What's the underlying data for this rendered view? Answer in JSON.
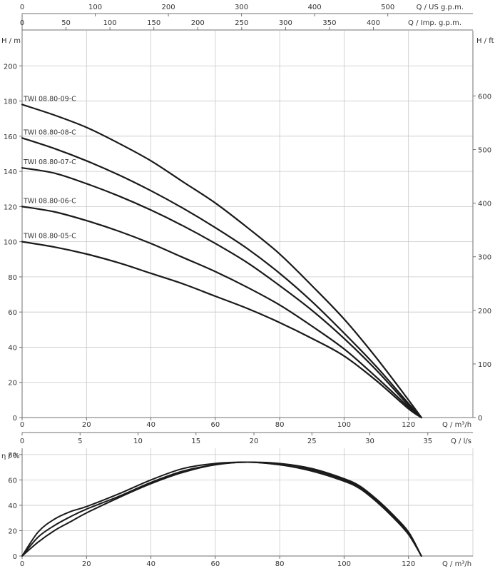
{
  "chart_data": [
    {
      "type": "line",
      "title": "",
      "xlabel": "Q / m³/h",
      "ylabel": "H / m",
      "xlim": [
        0,
        140
      ],
      "ylim": [
        0,
        220
      ],
      "x_ticks": [
        0,
        20,
        40,
        60,
        80,
        100,
        120
      ],
      "y_ticks": [
        0,
        20,
        40,
        60,
        80,
        100,
        120,
        140,
        160,
        180,
        200
      ],
      "grid": true,
      "secondary_axes": {
        "top_us": {
          "label": "Q / US g.p.m.",
          "max": 616.4,
          "ticks": [
            0,
            100,
            200,
            300,
            400,
            500
          ]
        },
        "top_imp": {
          "label": "Q / Imp. g.p.m.",
          "max": 513.3,
          "ticks": [
            0,
            50,
            100,
            150,
            200,
            250,
            300,
            350,
            400
          ]
        },
        "right_ft": {
          "label": "H / ft",
          "max": 721.8,
          "ticks": [
            0,
            100,
            200,
            300,
            400,
            500,
            600
          ]
        },
        "bottom_ls": {
          "label": "Q / l/s",
          "max": 38.89,
          "ticks": [
            0,
            5,
            10,
            15,
            20,
            25,
            30,
            35
          ]
        }
      },
      "series": [
        {
          "name": "TWI 08.80-09-C",
          "x": [
            0,
            10,
            20,
            30,
            40,
            50,
            60,
            70,
            80,
            90,
            100,
            110,
            120,
            124
          ],
          "y": [
            178,
            172,
            165,
            156,
            146,
            134,
            122,
            108,
            93,
            75,
            56,
            34,
            10,
            0
          ]
        },
        {
          "name": "TWI 08.80-08-C",
          "x": [
            0,
            10,
            20,
            30,
            40,
            50,
            60,
            70,
            80,
            90,
            100,
            110,
            120,
            124
          ],
          "y": [
            159,
            153,
            146,
            138,
            129,
            119,
            108,
            96,
            82,
            66,
            48,
            29,
            8,
            0
          ]
        },
        {
          "name": "TWI 08.80-07-C",
          "x": [
            0,
            10,
            20,
            30,
            40,
            50,
            60,
            70,
            80,
            90,
            100,
            110,
            120,
            124
          ],
          "y": [
            142,
            139,
            133,
            126,
            118,
            109,
            99,
            88,
            75,
            61,
            45,
            27,
            7,
            0
          ]
        },
        {
          "name": "TWI 08.80-06-C",
          "x": [
            0,
            10,
            20,
            30,
            40,
            50,
            60,
            70,
            80,
            90,
            100,
            110,
            120,
            124
          ],
          "y": [
            120,
            117,
            112,
            106,
            99,
            91,
            83,
            74,
            64,
            52,
            39,
            23,
            6,
            0
          ]
        },
        {
          "name": "TWI 08.80-05-C",
          "x": [
            0,
            10,
            20,
            30,
            40,
            50,
            60,
            70,
            80,
            90,
            100,
            110,
            120,
            124
          ],
          "y": [
            100,
            97,
            93,
            88,
            82,
            76,
            69,
            62,
            54,
            45,
            35,
            21,
            5,
            0
          ]
        }
      ]
    },
    {
      "type": "line",
      "title": "",
      "xlabel": "Q / m³/h",
      "ylabel": "η / %",
      "xlim": [
        0,
        140
      ],
      "ylim": [
        0,
        85
      ],
      "x_ticks": [
        0,
        20,
        40,
        60,
        80,
        100,
        120
      ],
      "y_ticks": [
        0,
        20,
        40,
        60,
        80
      ],
      "grid": true,
      "series": [
        {
          "x": [
            0,
            5,
            10,
            15,
            20,
            30,
            40,
            50,
            60,
            70,
            80,
            90,
            100,
            105,
            110,
            115,
            120,
            124
          ],
          "y": [
            0,
            19,
            29,
            35,
            39,
            49,
            60,
            69,
            73,
            74,
            73,
            69,
            61,
            55,
            45,
            33,
            19,
            0
          ]
        },
        {
          "x": [
            0,
            5,
            10,
            15,
            20,
            30,
            40,
            50,
            60,
            70,
            80,
            90,
            100,
            105,
            110,
            115,
            120,
            124
          ],
          "y": [
            0,
            15,
            24,
            31,
            37,
            47,
            58,
            67,
            72,
            74,
            72,
            68,
            60,
            54,
            44,
            32,
            18,
            0
          ]
        },
        {
          "x": [
            0,
            5,
            10,
            15,
            20,
            30,
            40,
            50,
            60,
            70,
            80,
            90,
            100,
            105,
            110,
            115,
            120,
            124
          ],
          "y": [
            0,
            11,
            20,
            27,
            34,
            46,
            57,
            66,
            72,
            74,
            72,
            67,
            59,
            53,
            43,
            31,
            17,
            0
          ]
        }
      ]
    }
  ]
}
